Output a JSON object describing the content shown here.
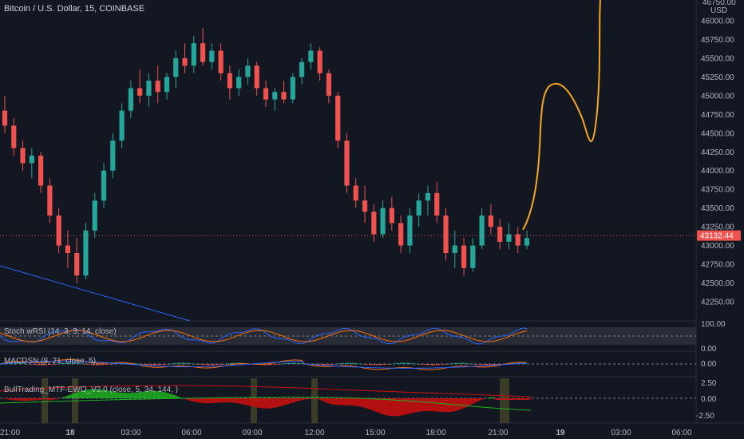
{
  "header": {
    "symbol_title": "Bitcoin / U.S. Dollar, 15, COINBASE",
    "currency": "USD",
    "top_price_cut": "46750.00"
  },
  "colors": {
    "background": "#131722",
    "up": "#26a69a",
    "down": "#ef5350",
    "axis_text": "#b2b5be",
    "projection": "#f5a623",
    "trendline": "#2962ff",
    "price_badge": "#ef5350"
  },
  "price_axis": {
    "ticks": [
      "46000.00",
      "45750.00",
      "45500.00",
      "45250.00",
      "45000.00",
      "44750.00",
      "44500.00",
      "44250.00",
      "44000.00",
      "43750.00",
      "43500.00",
      "43250.00",
      "43000.00",
      "42750.00",
      "42500.00",
      "42250.00"
    ],
    "current_price": "43132.44"
  },
  "time_axis": {
    "ticks": [
      "21:00",
      "18",
      "03:00",
      "06:00",
      "09:00",
      "12:00",
      "15:00",
      "18:00",
      "21:00",
      "19",
      "03:00",
      "06:00"
    ]
  },
  "indicators": {
    "stoch": {
      "label": "Stoch wRSI (14, 3, 3, 14, close)",
      "ticks": [
        "100.00",
        "0.00"
      ]
    },
    "macd": {
      "label": "MACDSN (8, 21, close, 5)",
      "ticks": [
        "0.00"
      ]
    },
    "ewo": {
      "label": "BullTrading_MTF-EWO_V2.0 (close, 5, 34, 144, )",
      "ticks": [
        "2.50",
        "0.00",
        "-2.50"
      ]
    }
  },
  "chart_data": {
    "type": "candlestick",
    "title": "Bitcoin / U.S. Dollar, 15, COINBASE",
    "ylim": [
      42100,
      46800
    ],
    "xlabel": "",
    "ylabel": "",
    "grid": false,
    "current_price": 43132.44,
    "candles": [
      [
        44800,
        45000,
        44500,
        44600
      ],
      [
        44600,
        44700,
        44200,
        44300
      ],
      [
        44300,
        44400,
        44000,
        44100
      ],
      [
        44100,
        44300,
        43900,
        44200
      ],
      [
        44200,
        44250,
        43700,
        43800
      ],
      [
        43800,
        43900,
        43300,
        43400
      ],
      [
        43400,
        43500,
        42900,
        43000
      ],
      [
        43000,
        43200,
        42700,
        42900
      ],
      [
        42900,
        43100,
        42500,
        42600
      ],
      [
        42600,
        43300,
        42550,
        43200
      ],
      [
        43200,
        43700,
        43100,
        43600
      ],
      [
        43600,
        44100,
        43500,
        44000
      ],
      [
        44000,
        44500,
        43900,
        44400
      ],
      [
        44400,
        44900,
        44300,
        44800
      ],
      [
        44800,
        45200,
        44700,
        45100
      ],
      [
        45100,
        45350,
        44900,
        45000
      ],
      [
        45000,
        45300,
        44850,
        45200
      ],
      [
        45200,
        45400,
        44900,
        45050
      ],
      [
        45050,
        45300,
        44950,
        45250
      ],
      [
        45250,
        45600,
        45100,
        45500
      ],
      [
        45500,
        45700,
        45300,
        45400
      ],
      [
        45400,
        45800,
        45300,
        45700
      ],
      [
        45700,
        45900,
        45400,
        45450
      ],
      [
        45450,
        45700,
        45350,
        45600
      ],
      [
        45600,
        45700,
        45200,
        45300
      ],
      [
        45300,
        45400,
        44950,
        45100
      ],
      [
        45100,
        45350,
        45000,
        45250
      ],
      [
        45250,
        45500,
        45150,
        45400
      ],
      [
        45400,
        45450,
        45000,
        45100
      ],
      [
        45100,
        45200,
        44850,
        44950
      ],
      [
        44950,
        45100,
        44800,
        45050
      ],
      [
        45050,
        45200,
        44900,
        44950
      ],
      [
        44950,
        45300,
        44900,
        45250
      ],
      [
        45250,
        45500,
        45150,
        45450
      ],
      [
        45450,
        45700,
        45350,
        45600
      ],
      [
        45600,
        45650,
        45200,
        45300
      ],
      [
        45300,
        45350,
        44900,
        45000
      ],
      [
        45000,
        45050,
        44300,
        44400
      ],
      [
        44400,
        44500,
        43700,
        43800
      ],
      [
        43800,
        43900,
        43500,
        43600
      ],
      [
        43600,
        43800,
        43300,
        43450
      ],
      [
        43450,
        43550,
        43050,
        43150
      ],
      [
        43150,
        43600,
        43100,
        43500
      ],
      [
        43500,
        43650,
        43200,
        43300
      ],
      [
        43300,
        43400,
        42900,
        43000
      ],
      [
        43000,
        43500,
        42900,
        43400
      ],
      [
        43400,
        43700,
        43250,
        43600
      ],
      [
        43600,
        43800,
        43400,
        43700
      ],
      [
        43700,
        43850,
        43300,
        43400
      ],
      [
        43400,
        43500,
        42800,
        42900
      ],
      [
        42900,
        43200,
        42700,
        43000
      ],
      [
        43000,
        43100,
        42600,
        42700
      ],
      [
        42700,
        43100,
        42650,
        43000
      ],
      [
        43000,
        43500,
        42950,
        43400
      ],
      [
        43400,
        43550,
        43150,
        43250
      ],
      [
        43250,
        43350,
        42950,
        43050
      ],
      [
        43050,
        43300,
        42950,
        43150
      ],
      [
        43150,
        43250,
        42900,
        43000
      ],
      [
        43000,
        43200,
        42950,
        43100
      ]
    ],
    "projection_label": "hand-drawn projection path"
  }
}
